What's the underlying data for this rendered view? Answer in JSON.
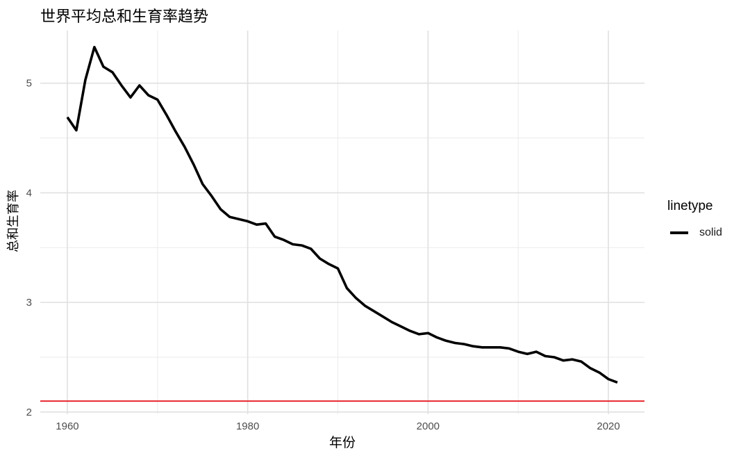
{
  "chart_data": {
    "type": "line",
    "title": "世界平均总和生育率趋势",
    "xlabel": "年份",
    "ylabel": "总和生育率",
    "xlim": [
      1957,
      2024
    ],
    "ylim": [
      1.98,
      5.48
    ],
    "x_ticks": [
      1960,
      1980,
      2000,
      2020
    ],
    "y_ticks": [
      2,
      3,
      4,
      5
    ],
    "x_minor": [
      1970,
      1990,
      2010
    ],
    "y_minor": [
      2.5,
      3.5,
      4.5
    ],
    "grid": true,
    "legend": {
      "title": "linetype",
      "position": "right",
      "entries": [
        "solid"
      ]
    },
    "series": [
      {
        "line_color": "#000000",
        "x": [
          1960,
          1961,
          1962,
          1963,
          1964,
          1965,
          1966,
          1967,
          1968,
          1969,
          1970,
          1971,
          1972,
          1973,
          1974,
          1975,
          1976,
          1977,
          1978,
          1979,
          1980,
          1981,
          1982,
          1983,
          1984,
          1985,
          1986,
          1987,
          1988,
          1989,
          1990,
          1991,
          1992,
          1993,
          1994,
          1995,
          1996,
          1997,
          1998,
          1999,
          2000,
          2001,
          2002,
          2003,
          2004,
          2005,
          2006,
          2007,
          2008,
          2009,
          2010,
          2011,
          2012,
          2013,
          2014,
          2015,
          2016,
          2017,
          2018,
          2019,
          2020,
          2021
        ],
        "y": [
          4.69,
          4.57,
          5.03,
          5.33,
          5.15,
          5.1,
          4.98,
          4.87,
          4.98,
          4.89,
          4.85,
          4.71,
          4.56,
          4.42,
          4.26,
          4.08,
          3.97,
          3.85,
          3.78,
          3.76,
          3.74,
          3.71,
          3.72,
          3.6,
          3.57,
          3.53,
          3.52,
          3.49,
          3.4,
          3.35,
          3.31,
          3.13,
          3.04,
          2.97,
          2.92,
          2.87,
          2.82,
          2.78,
          2.74,
          2.71,
          2.72,
          2.68,
          2.65,
          2.63,
          2.62,
          2.6,
          2.59,
          2.59,
          2.59,
          2.58,
          2.55,
          2.53,
          2.55,
          2.51,
          2.5,
          2.47,
          2.48,
          2.46,
          2.4,
          2.36,
          2.3,
          2.27
        ]
      },
      {
        "type": "hline",
        "line_color": "#e8242e",
        "y": [
          2.1
        ]
      }
    ]
  }
}
